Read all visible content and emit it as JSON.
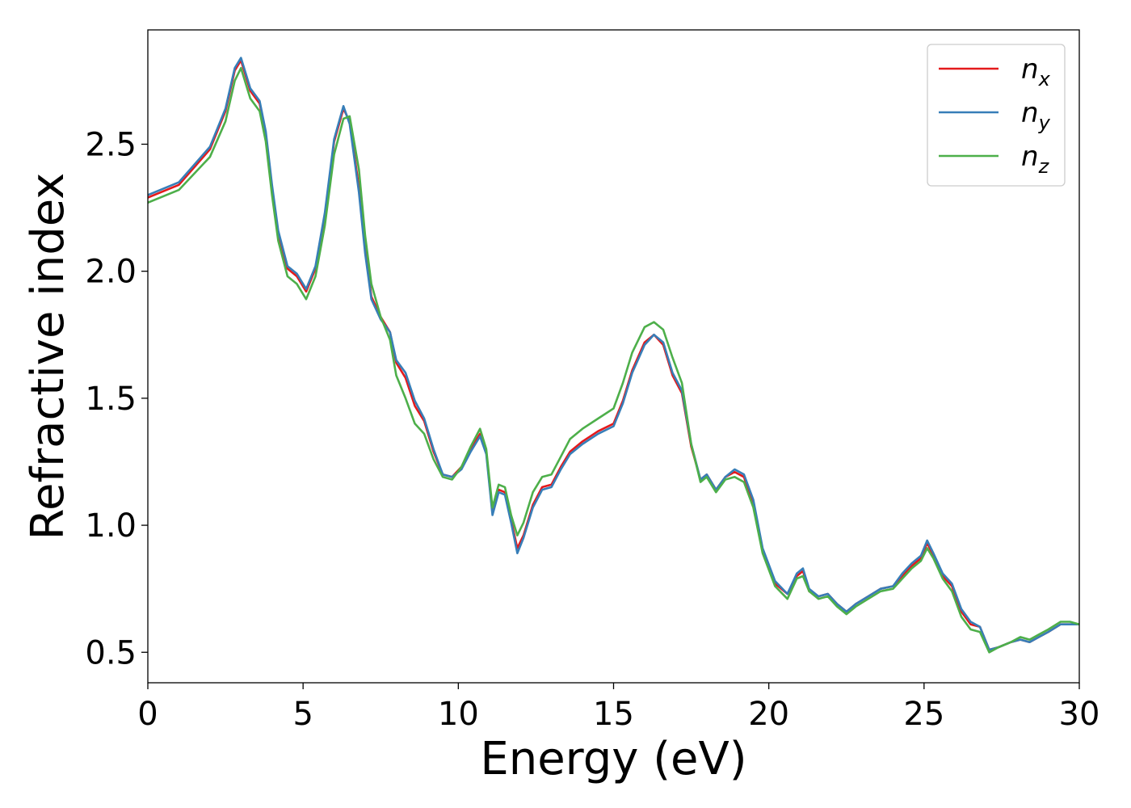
{
  "chart_data": {
    "type": "line",
    "xlabel": "Energy (eV)",
    "ylabel": "Refractive index",
    "xlim": [
      0,
      30
    ],
    "ylim": [
      0.38,
      2.95
    ],
    "xticks": [
      0,
      5,
      10,
      15,
      20,
      25,
      30
    ],
    "xtick_labels": [
      "0",
      "5",
      "10",
      "15",
      "20",
      "25",
      "30"
    ],
    "yticks": [
      0.5,
      1.0,
      1.5,
      2.0,
      2.5
    ],
    "ytick_labels": [
      "0.5",
      "1.0",
      "1.5",
      "2.0",
      "2.5"
    ],
    "grid": false,
    "legend_position": "top-right",
    "series": [
      {
        "name": "n_x",
        "label_main": "n",
        "label_sub": "x",
        "color": "#e41a1c",
        "x": [
          0,
          1,
          2,
          2.5,
          2.8,
          3.0,
          3.3,
          3.6,
          3.8,
          4.0,
          4.2,
          4.5,
          4.8,
          5.1,
          5.4,
          5.7,
          6.0,
          6.3,
          6.5,
          6.8,
          7.0,
          7.2,
          7.5,
          7.8,
          8.0,
          8.3,
          8.6,
          8.9,
          9.2,
          9.5,
          9.8,
          10.1,
          10.4,
          10.7,
          10.9,
          11.1,
          11.3,
          11.5,
          11.7,
          11.9,
          12.1,
          12.4,
          12.7,
          13.0,
          13.3,
          13.6,
          14.0,
          14.5,
          15.0,
          15.3,
          15.6,
          16.0,
          16.3,
          16.6,
          16.9,
          17.2,
          17.5,
          17.8,
          18.0,
          18.3,
          18.6,
          18.9,
          19.2,
          19.5,
          19.8,
          20.2,
          20.6,
          20.9,
          21.1,
          21.3,
          21.6,
          21.9,
          22.2,
          22.5,
          22.8,
          23.2,
          23.6,
          24.0,
          24.3,
          24.6,
          24.9,
          25.1,
          25.3,
          25.6,
          25.9,
          26.2,
          26.5,
          26.8,
          27.1,
          27.4,
          27.8,
          28.1,
          28.4,
          28.7,
          29.0,
          29.4,
          29.7,
          30.0
        ],
        "values": [
          2.29,
          2.34,
          2.48,
          2.63,
          2.79,
          2.83,
          2.71,
          2.66,
          2.54,
          2.33,
          2.15,
          2.01,
          1.98,
          1.92,
          2.01,
          2.22,
          2.51,
          2.64,
          2.59,
          2.33,
          2.09,
          1.9,
          1.82,
          1.76,
          1.64,
          1.58,
          1.47,
          1.41,
          1.29,
          1.2,
          1.19,
          1.23,
          1.3,
          1.36,
          1.29,
          1.05,
          1.14,
          1.13,
          1.02,
          0.91,
          0.96,
          1.08,
          1.15,
          1.16,
          1.23,
          1.29,
          1.33,
          1.37,
          1.4,
          1.49,
          1.61,
          1.72,
          1.75,
          1.71,
          1.59,
          1.52,
          1.31,
          1.18,
          1.2,
          1.14,
          1.19,
          1.21,
          1.19,
          1.08,
          0.9,
          0.77,
          0.73,
          0.8,
          0.82,
          0.74,
          0.72,
          0.73,
          0.69,
          0.66,
          0.69,
          0.72,
          0.75,
          0.76,
          0.8,
          0.84,
          0.87,
          0.93,
          0.88,
          0.8,
          0.76,
          0.66,
          0.61,
          0.6,
          0.51,
          0.52,
          0.54,
          0.55,
          0.54,
          0.56,
          0.58,
          0.61,
          0.61,
          0.61
        ]
      },
      {
        "name": "n_y",
        "label_main": "n",
        "label_sub": "y",
        "color": "#377eb8",
        "x": [
          0,
          1,
          2,
          2.5,
          2.8,
          3.0,
          3.3,
          3.6,
          3.8,
          4.0,
          4.2,
          4.5,
          4.8,
          5.1,
          5.4,
          5.7,
          6.0,
          6.3,
          6.5,
          6.8,
          7.0,
          7.2,
          7.5,
          7.8,
          8.0,
          8.3,
          8.6,
          8.9,
          9.2,
          9.5,
          9.8,
          10.1,
          10.4,
          10.7,
          10.9,
          11.1,
          11.3,
          11.5,
          11.7,
          11.9,
          12.1,
          12.4,
          12.7,
          13.0,
          13.3,
          13.6,
          14.0,
          14.5,
          15.0,
          15.3,
          15.6,
          16.0,
          16.3,
          16.6,
          16.9,
          17.2,
          17.5,
          17.8,
          18.0,
          18.3,
          18.6,
          18.9,
          19.2,
          19.5,
          19.8,
          20.2,
          20.6,
          20.9,
          21.1,
          21.3,
          21.6,
          21.9,
          22.2,
          22.5,
          22.8,
          23.2,
          23.6,
          24.0,
          24.3,
          24.6,
          24.9,
          25.1,
          25.3,
          25.6,
          25.9,
          26.2,
          26.5,
          26.8,
          27.1,
          27.4,
          27.8,
          28.1,
          28.4,
          28.7,
          29.0,
          29.4,
          29.7,
          30.0
        ],
        "values": [
          2.3,
          2.35,
          2.49,
          2.64,
          2.8,
          2.84,
          2.72,
          2.67,
          2.55,
          2.34,
          2.16,
          2.02,
          1.99,
          1.93,
          2.02,
          2.23,
          2.52,
          2.65,
          2.58,
          2.31,
          2.07,
          1.89,
          1.81,
          1.76,
          1.65,
          1.6,
          1.49,
          1.42,
          1.3,
          1.2,
          1.19,
          1.22,
          1.29,
          1.35,
          1.28,
          1.04,
          1.13,
          1.12,
          1.01,
          0.89,
          0.95,
          1.07,
          1.14,
          1.15,
          1.22,
          1.28,
          1.32,
          1.36,
          1.39,
          1.48,
          1.6,
          1.71,
          1.75,
          1.72,
          1.6,
          1.53,
          1.32,
          1.18,
          1.2,
          1.14,
          1.19,
          1.22,
          1.2,
          1.1,
          0.91,
          0.78,
          0.73,
          0.81,
          0.83,
          0.75,
          0.72,
          0.73,
          0.69,
          0.66,
          0.69,
          0.72,
          0.75,
          0.76,
          0.81,
          0.85,
          0.88,
          0.94,
          0.89,
          0.81,
          0.77,
          0.67,
          0.62,
          0.6,
          0.51,
          0.52,
          0.54,
          0.55,
          0.54,
          0.56,
          0.58,
          0.61,
          0.61,
          0.61
        ]
      },
      {
        "name": "n_z",
        "label_main": "n",
        "label_sub": "z",
        "color": "#4daf4a",
        "x": [
          0,
          1,
          2,
          2.5,
          2.8,
          3.0,
          3.3,
          3.6,
          3.8,
          4.0,
          4.2,
          4.5,
          4.8,
          5.1,
          5.4,
          5.7,
          6.0,
          6.3,
          6.5,
          6.8,
          7.0,
          7.2,
          7.5,
          7.8,
          8.0,
          8.3,
          8.6,
          8.9,
          9.2,
          9.5,
          9.8,
          10.1,
          10.4,
          10.7,
          10.9,
          11.1,
          11.3,
          11.5,
          11.7,
          11.9,
          12.1,
          12.4,
          12.7,
          13.0,
          13.3,
          13.6,
          14.0,
          14.5,
          15.0,
          15.3,
          15.6,
          16.0,
          16.3,
          16.6,
          16.9,
          17.2,
          17.5,
          17.8,
          18.0,
          18.3,
          18.6,
          18.9,
          19.2,
          19.5,
          19.8,
          20.2,
          20.6,
          20.9,
          21.1,
          21.3,
          21.6,
          21.9,
          22.2,
          22.5,
          22.8,
          23.2,
          23.6,
          24.0,
          24.3,
          24.6,
          24.9,
          25.1,
          25.3,
          25.6,
          25.9,
          26.2,
          26.5,
          26.8,
          27.1,
          27.4,
          27.8,
          28.1,
          28.4,
          28.7,
          29.0,
          29.4,
          29.7,
          30.0
        ],
        "values": [
          2.27,
          2.32,
          2.45,
          2.59,
          2.75,
          2.8,
          2.68,
          2.63,
          2.51,
          2.3,
          2.12,
          1.98,
          1.95,
          1.89,
          1.98,
          2.18,
          2.46,
          2.6,
          2.61,
          2.4,
          2.14,
          1.95,
          1.82,
          1.73,
          1.59,
          1.5,
          1.4,
          1.36,
          1.26,
          1.19,
          1.18,
          1.23,
          1.31,
          1.38,
          1.3,
          1.07,
          1.16,
          1.15,
          1.04,
          0.96,
          1.01,
          1.13,
          1.19,
          1.2,
          1.27,
          1.34,
          1.38,
          1.42,
          1.46,
          1.56,
          1.68,
          1.78,
          1.8,
          1.77,
          1.66,
          1.56,
          1.32,
          1.17,
          1.19,
          1.13,
          1.18,
          1.19,
          1.17,
          1.07,
          0.89,
          0.76,
          0.71,
          0.79,
          0.8,
          0.74,
          0.71,
          0.72,
          0.68,
          0.65,
          0.68,
          0.71,
          0.74,
          0.75,
          0.79,
          0.83,
          0.86,
          0.91,
          0.87,
          0.79,
          0.74,
          0.64,
          0.59,
          0.58,
          0.5,
          0.52,
          0.54,
          0.56,
          0.55,
          0.57,
          0.59,
          0.62,
          0.62,
          0.61
        ]
      }
    ]
  }
}
